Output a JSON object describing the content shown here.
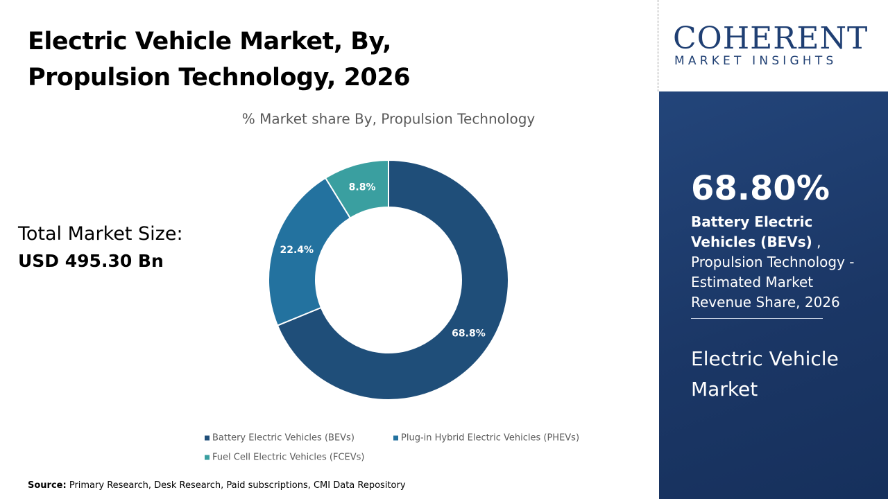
{
  "total_market_size": {
    "label": "Total Market Size:",
    "value": "USD 495.30 Bn"
  },
  "source": {
    "label": "Source:",
    "text": "Primary Research, Desk Research, Paid subscriptions, CMI Data Repository"
  },
  "logo": {
    "name": "COHERENT",
    "tagline": "MARKET INSIGHTS"
  },
  "highlight": {
    "value": "68.80%",
    "segment": "Battery Electric Vehicles (BEVs)",
    "description": " , Propulsion Technology - Estimated Market Revenue Share, 2026",
    "market": "Electric Vehicle Market"
  },
  "chart_data": {
    "type": "donut",
    "title": "Electric Vehicle Market, By, Propulsion Technology, 2026",
    "subtitle": "% Market share By, Propulsion Technology",
    "categories": [
      "Battery Electric Vehicles (BEVs)",
      "Plug-in Hybrid Electric Vehicles (PHEVs)",
      "Fuel Cell Electric Vehicles (FCEVs)"
    ],
    "values": [
      68.8,
      22.4,
      8.8
    ],
    "value_labels": [
      "68.8%",
      "22.4%",
      "8.8%"
    ],
    "colors": [
      "#1f4e79",
      "#23729f",
      "#3a9fa0"
    ]
  }
}
